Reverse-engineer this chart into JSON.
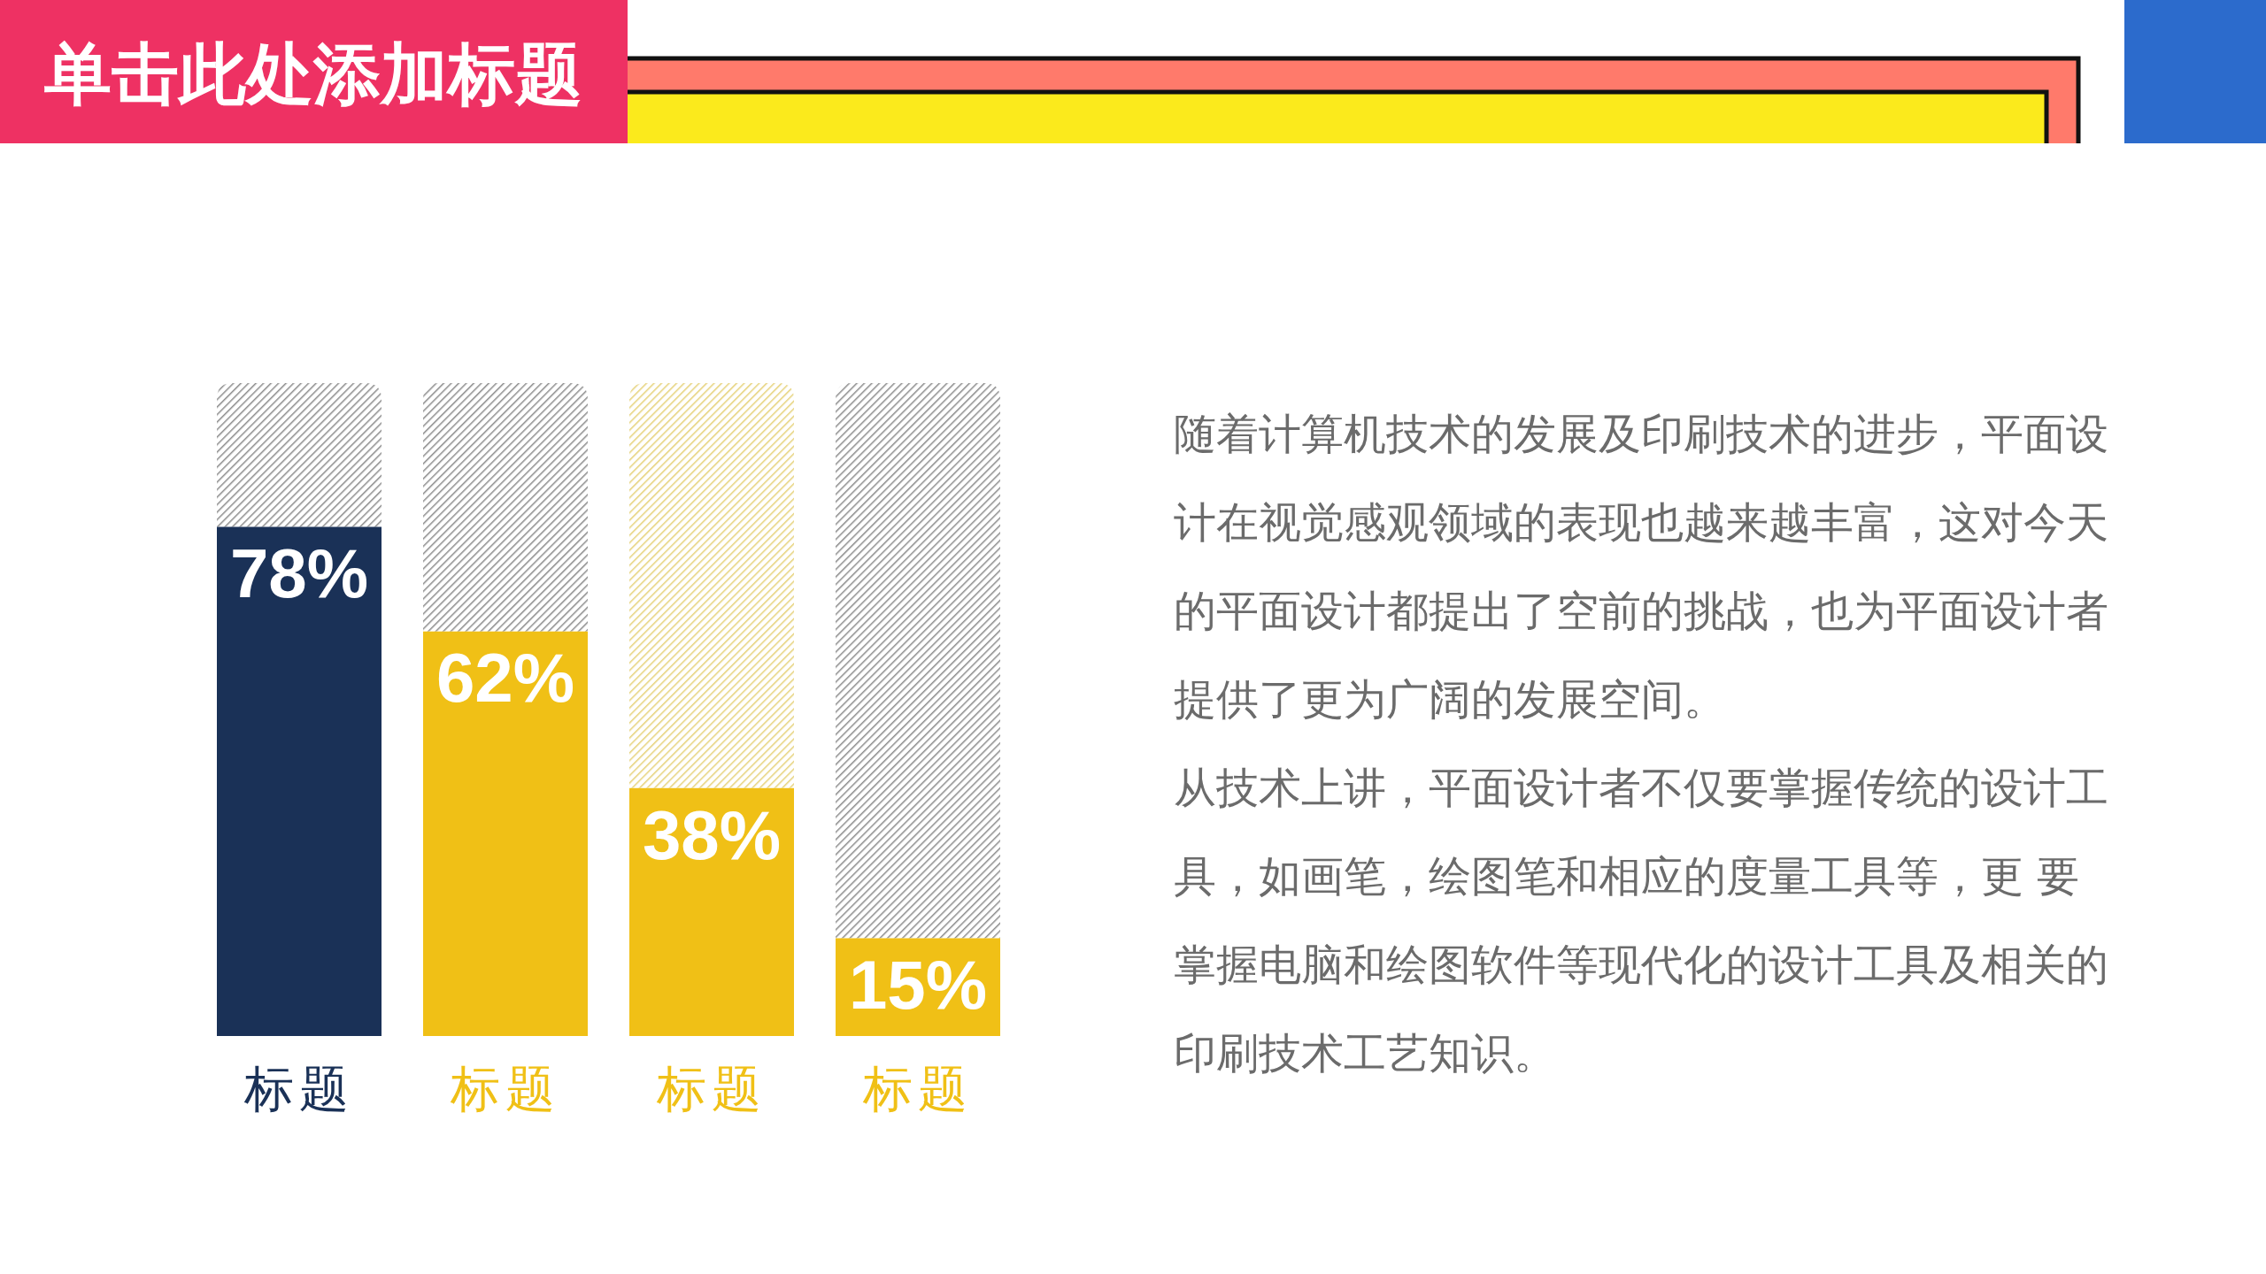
{
  "chart_data": {
    "type": "bar",
    "title": "单击此处添加标题",
    "stacked": true,
    "categories": [
      "标题",
      "标题",
      "标题",
      "标题"
    ],
    "series": [
      {
        "colors": [
          "#1a3157",
          "#f0c016",
          "#f0c016",
          "#f0c016"
        ],
        "values": [
          78,
          62,
          38,
          15
        ],
        "value_labels": [
          "78%",
          "62%",
          "38%",
          "15%"
        ]
      },
      {
        "colors": [
          "#8c8c8c",
          "#8c8c8c",
          "#e6d27a",
          "#8c8c8c"
        ],
        "values": [
          22,
          38,
          62,
          85
        ]
      }
    ],
    "ylim": [
      0,
      100
    ],
    "annotations": [
      "随着计算机技术的发展及印刷技术的进步，平面设计在视觉感观领域的表现也越来越丰富，这对今天的平面设计都提出了空前的挑战，也为平面设计者提供了更为广阔的发展空间。",
      "从技术上讲，平面设计者不仅要掌握传统的设计工具，如画笔，绘图笔和相应的度量工具等，更 要掌握电脑和绘图软件等现代化的设计工具及相关的印刷技术工艺知识。"
    ]
  }
}
